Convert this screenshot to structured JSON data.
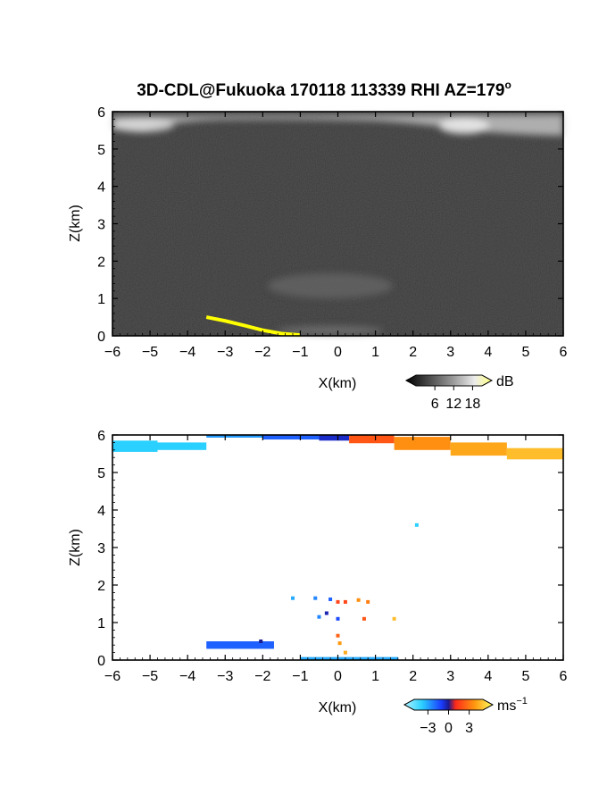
{
  "title": "3D-CDL@Fukuoka 170118 113339 RHI AZ=179",
  "title_suffix": "o",
  "chart_data": [
    {
      "type": "heatmap",
      "name": "reflectivity",
      "xlabel": "X(km)",
      "ylabel": "Z(km)",
      "xlim": [
        -6,
        6
      ],
      "ylim": [
        0,
        6
      ],
      "xticks": [
        -6,
        -5,
        -4,
        -3,
        -2,
        -1,
        0,
        1,
        2,
        3,
        4,
        5,
        6
      ],
      "yticks": [
        0,
        1,
        2,
        3,
        4,
        5,
        6
      ],
      "colormap": "gray",
      "background": "#232323",
      "features": [
        {
          "label": "cloud layer",
          "x": [
            -6,
            6
          ],
          "z": [
            5.5,
            6.0
          ]
        },
        {
          "label": "weak echo",
          "x": [
            -2,
            2
          ],
          "z": [
            1.0,
            1.7
          ]
        }
      ],
      "trace_color": "#ffff00",
      "trace": [
        [
          -3.5,
          0.5
        ],
        [
          -3.0,
          0.4
        ],
        [
          -2.5,
          0.28
        ],
        [
          -2.0,
          0.15
        ],
        [
          -1.5,
          0.06
        ],
        [
          -1.0,
          0.02
        ]
      ],
      "colorbar": {
        "unit": "dB",
        "ticks": [
          "6",
          "12",
          "18"
        ],
        "range": [
          0,
          21
        ]
      }
    },
    {
      "type": "heatmap",
      "name": "doppler_velocity",
      "xlabel": "X(km)",
      "ylabel": "Z(km)",
      "xlim": [
        -6,
        6
      ],
      "ylim": [
        0,
        6
      ],
      "xticks": [
        -6,
        -5,
        -4,
        -3,
        -2,
        -1,
        0,
        1,
        2,
        3,
        4,
        5,
        6
      ],
      "yticks": [
        0,
        1,
        2,
        3,
        4,
        5,
        6
      ],
      "colormap": "cyan-blue-red-yellow",
      "bands": [
        {
          "x": [
            -6.0,
            -4.8
          ],
          "z": [
            5.55,
            5.85
          ],
          "v": -3.0
        },
        {
          "x": [
            -5.2,
            -3.5
          ],
          "z": [
            5.6,
            5.8
          ],
          "v": -3.0
        },
        {
          "x": [
            -3.5,
            -2.0
          ],
          "z": [
            5.95,
            6.0
          ],
          "v": -2.3
        },
        {
          "x": [
            -2.0,
            -0.5
          ],
          "z": [
            5.88,
            6.0
          ],
          "v": -1.5
        },
        {
          "x": [
            -0.5,
            0.3
          ],
          "z": [
            5.85,
            6.0
          ],
          "v": -0.5
        },
        {
          "x": [
            0.3,
            1.5
          ],
          "z": [
            5.78,
            6.0
          ],
          "v": 0.8
        },
        {
          "x": [
            1.5,
            3.0
          ],
          "z": [
            5.6,
            5.95
          ],
          "v": 1.8
        },
        {
          "x": [
            3.0,
            4.5
          ],
          "z": [
            5.45,
            5.8
          ],
          "v": 2.4
        },
        {
          "x": [
            4.5,
            6.0
          ],
          "z": [
            5.35,
            5.65
          ],
          "v": 3.0
        },
        {
          "x": [
            -3.5,
            -1.7
          ],
          "z": [
            0.3,
            0.5
          ],
          "v": -1.5
        },
        {
          "x": [
            -1.0,
            1.6
          ],
          "z": [
            0.0,
            0.08
          ],
          "v": -2.5
        }
      ],
      "points": [
        {
          "x": 2.1,
          "z": 3.6,
          "v": -3.0
        },
        {
          "x": -1.2,
          "z": 1.65,
          "v": -2.5
        },
        {
          "x": -0.6,
          "z": 1.65,
          "v": -2.0
        },
        {
          "x": -0.2,
          "z": 1.62,
          "v": -1.5
        },
        {
          "x": 0.0,
          "z": 1.55,
          "v": 0.5
        },
        {
          "x": 0.2,
          "z": 1.55,
          "v": 0.5
        },
        {
          "x": 0.55,
          "z": 1.6,
          "v": 1.8
        },
        {
          "x": 0.8,
          "z": 1.55,
          "v": 1.5
        },
        {
          "x": -0.3,
          "z": 1.25,
          "v": -0.3
        },
        {
          "x": 0.0,
          "z": 1.1,
          "v": -1.2
        },
        {
          "x": -0.5,
          "z": 1.15,
          "v": -2.0
        },
        {
          "x": 0.7,
          "z": 1.1,
          "v": 0.8
        },
        {
          "x": 1.5,
          "z": 1.1,
          "v": 3.0
        },
        {
          "x": 0.0,
          "z": 0.65,
          "v": 1.0
        },
        {
          "x": 0.05,
          "z": 0.45,
          "v": 2.0
        },
        {
          "x": -2.05,
          "z": 0.5,
          "v": 0.0
        },
        {
          "x": 0.2,
          "z": 0.2,
          "v": 2.5
        }
      ],
      "colorbar": {
        "unit": "ms",
        "unit_exp": "−1",
        "ticks": [
          "−3",
          "0",
          "3"
        ],
        "range": [
          -5,
          5
        ]
      }
    }
  ]
}
